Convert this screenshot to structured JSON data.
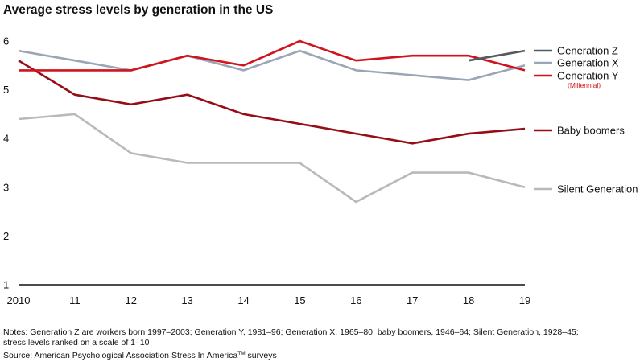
{
  "chart_data": {
    "type": "line",
    "title": "Average stress levels by generation in the US",
    "categories": [
      "2010",
      "11",
      "12",
      "13",
      "14",
      "15",
      "16",
      "17",
      "18",
      "19"
    ],
    "ylim": [
      1,
      6
    ],
    "yticks": [
      "1",
      "2",
      "3",
      "4",
      "5",
      "6"
    ],
    "xlabel": "",
    "ylabel": "",
    "grid": false,
    "series": [
      {
        "name": "Generation Z",
        "sublabel": "",
        "color": "#555a60",
        "values": [
          null,
          null,
          null,
          null,
          null,
          null,
          null,
          null,
          5.6,
          5.8
        ]
      },
      {
        "name": "Generation X",
        "sublabel": "",
        "color": "#9aa6b6",
        "values": [
          5.8,
          5.6,
          5.4,
          5.7,
          5.4,
          5.8,
          5.4,
          5.3,
          5.2,
          5.5
        ]
      },
      {
        "name": "Generation Y",
        "sublabel": "(Millennial)",
        "color": "#d0131c",
        "values": [
          5.4,
          5.4,
          5.4,
          5.7,
          5.5,
          6.0,
          5.6,
          5.7,
          5.7,
          5.4
        ]
      },
      {
        "name": "Baby boomers",
        "sublabel": "",
        "color": "#960d17",
        "values": [
          5.6,
          4.9,
          4.7,
          4.9,
          4.5,
          4.3,
          4.1,
          3.9,
          4.1,
          4.2
        ]
      },
      {
        "name": "Silent Generation",
        "sublabel": "",
        "color": "#b9b9b9",
        "values": [
          4.4,
          4.5,
          3.7,
          3.5,
          3.5,
          3.5,
          2.7,
          3.3,
          3.3,
          3.0
        ]
      }
    ]
  },
  "notes": {
    "line1": "Notes: Generation Z are workers born 1997–2003; Generation Y, 1981–96; Generation X, 1965–80; baby boomers, 1946–64; Silent Generation, 1928–45;",
    "line2": "stress levels ranked on a scale of 1–10",
    "source_prefix": "Source: American Psychological Association Stress In America",
    "source_tm": "TM",
    "source_suffix": " surveys"
  }
}
